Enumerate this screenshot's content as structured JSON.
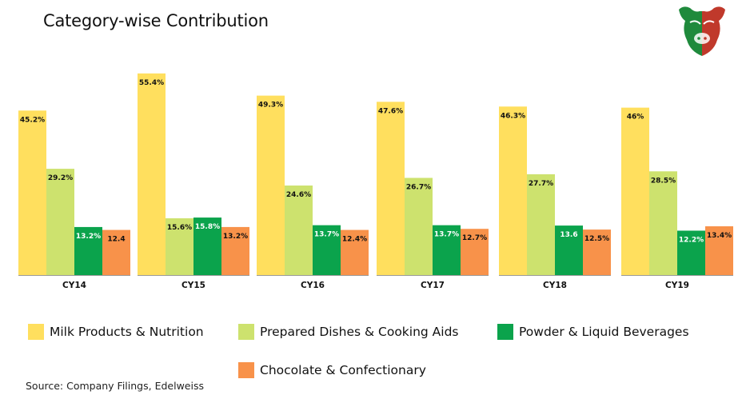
{
  "title": "Category-wise Contribution",
  "source": "Source: Company Filings, Edelweiss",
  "logo": "bull-bear-logo",
  "chart_data": {
    "type": "bar",
    "categories": [
      "CY14",
      "CY15",
      "CY16",
      "CY17",
      "CY18",
      "CY19"
    ],
    "series": [
      {
        "name": "Milk Products & Nutrition",
        "color": "#FFDF5E",
        "values": [
          45.2,
          55.4,
          49.3,
          47.6,
          46.3,
          46
        ],
        "labels": [
          "45.2%",
          "55.4%",
          "49.3%",
          "47.6%",
          "46.3%",
          "46%"
        ]
      },
      {
        "name": "Prepared Dishes & Cooking Aids",
        "color": "#CDE26E",
        "values": [
          29.2,
          15.6,
          24.6,
          26.7,
          27.7,
          28.5
        ],
        "labels": [
          "29.2%",
          "15.6%",
          "24.6%",
          "26.7%",
          "27.7%",
          "28.5%"
        ]
      },
      {
        "name": "Powder & Liquid Beverages",
        "color": "#0BA34C",
        "values": [
          13.2,
          15.8,
          13.7,
          13.7,
          13.6,
          12.2
        ],
        "labels": [
          "13.2%",
          "15.8%",
          "13.7%",
          "13.7%",
          "13.6",
          "12.2%"
        ]
      },
      {
        "name": "Chocolate & Confectionary",
        "color": "#F8924A",
        "values": [
          12.4,
          13.2,
          12.4,
          12.7,
          12.5,
          13.4
        ],
        "labels": [
          "12.4",
          "13.2%",
          "12.4%",
          "12.7%",
          "12.5%",
          "13.4%"
        ]
      }
    ],
    "ylim": [
      0,
      58
    ],
    "grid": false,
    "legend_position": "bottom"
  }
}
